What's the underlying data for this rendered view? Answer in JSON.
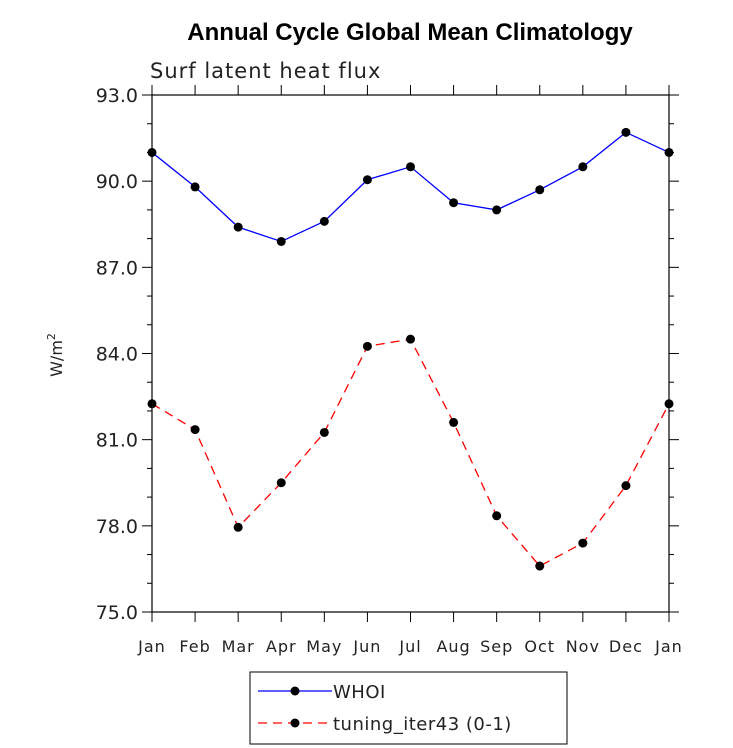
{
  "chart_data": {
    "type": "line",
    "title": "Annual Cycle Global Mean Climatology",
    "subtitle": "Surf latent heat flux",
    "ylabel": "W/m",
    "ylabel_sup": "2",
    "ylim": [
      75.0,
      93.0
    ],
    "yticks": [
      "75.0",
      "78.0",
      "81.0",
      "84.0",
      "87.0",
      "90.0",
      "93.0"
    ],
    "categories": [
      "Jan",
      "Feb",
      "Mar",
      "Apr",
      "May",
      "Jun",
      "Jul",
      "Aug",
      "Sep",
      "Oct",
      "Nov",
      "Dec",
      "Jan"
    ],
    "series": [
      {
        "name": "WHOI",
        "color": "#0000ff",
        "dash": "solid",
        "values": [
          91.0,
          89.8,
          88.4,
          87.9,
          88.6,
          90.05,
          90.5,
          89.25,
          89.0,
          89.7,
          90.5,
          91.7,
          91.0
        ]
      },
      {
        "name": "tuning_iter43 (0-1)",
        "color": "#ff0000",
        "dash": "dashed",
        "values": [
          82.25,
          81.35,
          77.95,
          79.5,
          81.25,
          84.25,
          84.5,
          81.6,
          78.35,
          76.6,
          77.4,
          79.4,
          82.25
        ]
      }
    ],
    "legend": "bottom-center",
    "grid": false
  }
}
